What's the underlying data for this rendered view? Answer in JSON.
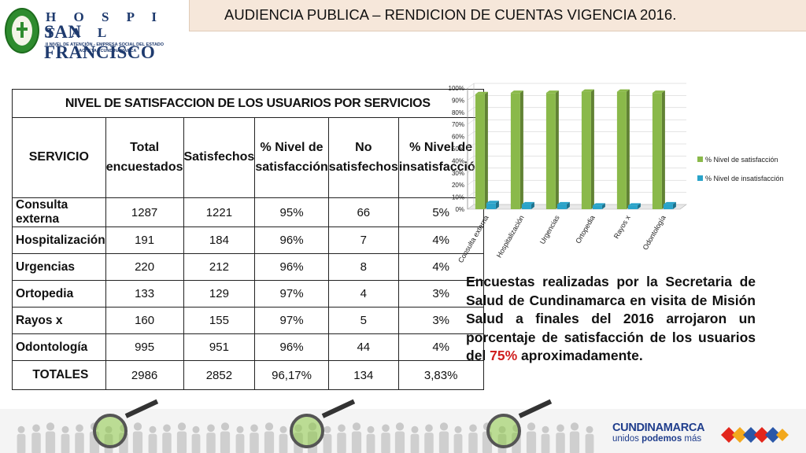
{
  "header": {
    "logo_line1": "H O S P I T A L",
    "logo_line2": "SAN FRANCISCO",
    "logo_line3": "II NIVEL DE ATENCIÓN - EMPRESA SOCIAL DEL ESTADO",
    "logo_line4": "GACHETA - CUNDINAMARCA",
    "title": "AUDIENCIA PUBLICA – RENDICION DE CUENTAS VIGENCIA 2016."
  },
  "table": {
    "title": "NIVEL DE SATISFACCION DE LOS USUARIOS POR SERVICIOS",
    "columns": [
      "SERVICIO",
      "Total encuestados",
      "Satisfechos",
      "% Nivel de satisfacción",
      "No satisfechos",
      "% Nivel de insatisfacción"
    ],
    "rows": [
      [
        "Consulta externa",
        "1287",
        "1221",
        "95%",
        "66",
        "5%"
      ],
      [
        "Hospitalización",
        "191",
        "184",
        "96%",
        "7",
        "4%"
      ],
      [
        "Urgencias",
        "220",
        "212",
        "96%",
        "8",
        "4%"
      ],
      [
        "Ortopedia",
        "133",
        "129",
        "97%",
        "4",
        "3%"
      ],
      [
        "Rayos x",
        "160",
        "155",
        "97%",
        "5",
        "3%"
      ],
      [
        "Odontología",
        "995",
        "951",
        "96%",
        "44",
        "4%"
      ]
    ],
    "totals": [
      "TOTALES",
      "2986",
      "2852",
      "96,17%",
      "134",
      "3,83%"
    ]
  },
  "chart_data": {
    "type": "bar",
    "categories": [
      "Consulta externa",
      "Hospitalización",
      "Urgencias",
      "Ortopedia",
      "Rayos x",
      "Odontología"
    ],
    "series": [
      {
        "name": "% Nivel de satisfacción",
        "values": [
          95,
          96,
          96,
          97,
          97,
          96
        ],
        "color": "#8ab94a"
      },
      {
        "name": "% Nivel de insatisfacción",
        "values": [
          5,
          4,
          4,
          3,
          3,
          4
        ],
        "color": "#2aa3c9"
      }
    ],
    "ylim": [
      0,
      100
    ],
    "yticks": [
      "0%",
      "10%",
      "20%",
      "30%",
      "40%",
      "50%",
      "60%",
      "70%",
      "80%",
      "90%",
      "100%"
    ],
    "grid": true,
    "legend": "right",
    "title": "",
    "xlabel": "",
    "ylabel": ""
  },
  "paragraph": {
    "text": "Encuestas realizadas por la Secretaria de Salud de Cundinamarca en visita de Misión Salud a finales del 2016 arrojaron un porcentaje de satisfacción de los usuarios del ",
    "highlight": "75%",
    "tail": " aproximadamente."
  },
  "footer": {
    "brand": "CUNDINAMARCA",
    "slogan_pre": "unidos ",
    "slogan_bold": "podemos",
    "slogan_post": " más"
  }
}
